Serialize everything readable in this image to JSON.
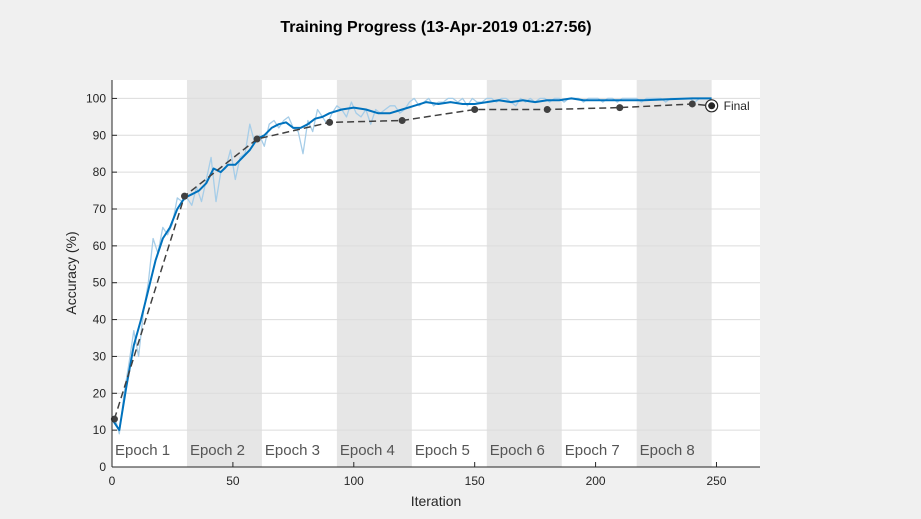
{
  "chart_data": {
    "type": "line",
    "title": "Training Progress (13-Apr-2019 01:27:56)",
    "xlabel": "Iteration",
    "ylabel": "Accuracy (%)",
    "xlim": [
      0,
      268
    ],
    "ylim": [
      0,
      105
    ],
    "xticks": [
      0,
      50,
      100,
      150,
      200,
      250
    ],
    "yticks": [
      0,
      10,
      20,
      30,
      40,
      50,
      60,
      70,
      80,
      90,
      100
    ],
    "grid": "horizontal",
    "epochs": [
      {
        "label": "Epoch 1",
        "start": 0,
        "end": 31,
        "shaded": false
      },
      {
        "label": "Epoch 2",
        "start": 31,
        "end": 62,
        "shaded": true
      },
      {
        "label": "Epoch 3",
        "start": 62,
        "end": 93,
        "shaded": false
      },
      {
        "label": "Epoch 4",
        "start": 93,
        "end": 124,
        "shaded": true
      },
      {
        "label": "Epoch 5",
        "start": 124,
        "end": 155,
        "shaded": false
      },
      {
        "label": "Epoch 6",
        "start": 155,
        "end": 186,
        "shaded": true
      },
      {
        "label": "Epoch 7",
        "start": 186,
        "end": 217,
        "shaded": false
      },
      {
        "label": "Epoch 8",
        "start": 217,
        "end": 248,
        "shaded": true
      }
    ],
    "series": [
      {
        "role": "raw-training-accuracy",
        "color": "#a6cde8",
        "x": [
          1,
          3,
          5,
          7,
          9,
          11,
          13,
          15,
          17,
          19,
          21,
          23,
          25,
          27,
          29,
          31,
          33,
          35,
          37,
          39,
          41,
          43,
          45,
          47,
          49,
          51,
          53,
          55,
          57,
          59,
          61,
          63,
          65,
          67,
          69,
          71,
          73,
          75,
          77,
          79,
          81,
          83,
          85,
          87,
          89,
          91,
          93,
          95,
          97,
          99,
          101,
          103,
          105,
          107,
          109,
          111,
          113,
          115,
          117,
          119,
          121,
          123,
          125,
          127,
          129,
          131,
          133,
          135,
          137,
          139,
          141,
          143,
          145,
          147,
          149,
          151,
          153,
          155,
          157,
          159,
          161,
          163,
          165,
          167,
          169,
          171,
          173,
          175,
          177,
          179,
          181,
          183,
          185,
          187,
          189,
          191,
          193,
          195,
          197,
          199,
          201,
          203,
          205,
          207,
          209,
          211,
          213,
          215,
          217,
          219,
          221,
          223,
          225,
          227,
          229,
          231,
          233,
          235,
          237,
          239,
          241,
          243,
          245,
          247
        ],
        "y": [
          14,
          9,
          20,
          28,
          37,
          30,
          42,
          50,
          62,
          58,
          65,
          63,
          66,
          73,
          72,
          73,
          71,
          76,
          72,
          78,
          84,
          72,
          80,
          81,
          86,
          78,
          84,
          85,
          93,
          88,
          90,
          87,
          93,
          94,
          92,
          94,
          95,
          92,
          91,
          85,
          94,
          91,
          97,
          95,
          93,
          96,
          98,
          97,
          95,
          99,
          96,
          95,
          97,
          93,
          97,
          96,
          97,
          98,
          98,
          96,
          97,
          99,
          100,
          98,
          99,
          100,
          98,
          99,
          99,
          100,
          100,
          99,
          100,
          98,
          100,
          99,
          99,
          100,
          100,
          99,
          100,
          100,
          99,
          98,
          100,
          99,
          100,
          99,
          100,
          100,
          99,
          100,
          100,
          99,
          100,
          100,
          100,
          99,
          100,
          100,
          100,
          99,
          100,
          100,
          99,
          100,
          100,
          100,
          100,
          99,
          100,
          100,
          100,
          100,
          99,
          100,
          100,
          100,
          100,
          100,
          99,
          100,
          100,
          100
        ]
      },
      {
        "role": "smoothed-training-accuracy",
        "color": "#0072bd",
        "x": [
          0,
          3,
          6,
          9,
          12,
          15,
          18,
          21,
          24,
          27,
          30,
          33,
          36,
          39,
          42,
          45,
          48,
          51,
          54,
          57,
          60,
          63,
          66,
          69,
          72,
          75,
          78,
          81,
          84,
          87,
          90,
          95,
          100,
          105,
          110,
          115,
          120,
          125,
          130,
          135,
          140,
          145,
          150,
          155,
          160,
          165,
          170,
          175,
          180,
          185,
          190,
          195,
          200,
          210,
          220,
          230,
          240,
          248
        ],
        "y": [
          13,
          10,
          22,
          33,
          40,
          48,
          56,
          62,
          65,
          70,
          73,
          74,
          75,
          77,
          81,
          80,
          82,
          82,
          84,
          86,
          89,
          90,
          92,
          93,
          93.5,
          92,
          92,
          93,
          94.5,
          95,
          96,
          97,
          97.5,
          97,
          96,
          96,
          97,
          98,
          99,
          98.5,
          99,
          98.5,
          98.5,
          99,
          99.5,
          99,
          99.5,
          99,
          99.5,
          99.5,
          100,
          99.5,
          99.5,
          99.5,
          99.5,
          99.8,
          100,
          100
        ]
      },
      {
        "role": "validation-accuracy",
        "color": "#404040",
        "dashed": true,
        "x": [
          1,
          30,
          60,
          90,
          120,
          150,
          180,
          210,
          240,
          248
        ],
        "y": [
          13,
          73.5,
          89,
          93.5,
          94,
          97,
          97,
          97.5,
          98.5,
          98
        ]
      }
    ],
    "final_label": "Final"
  }
}
